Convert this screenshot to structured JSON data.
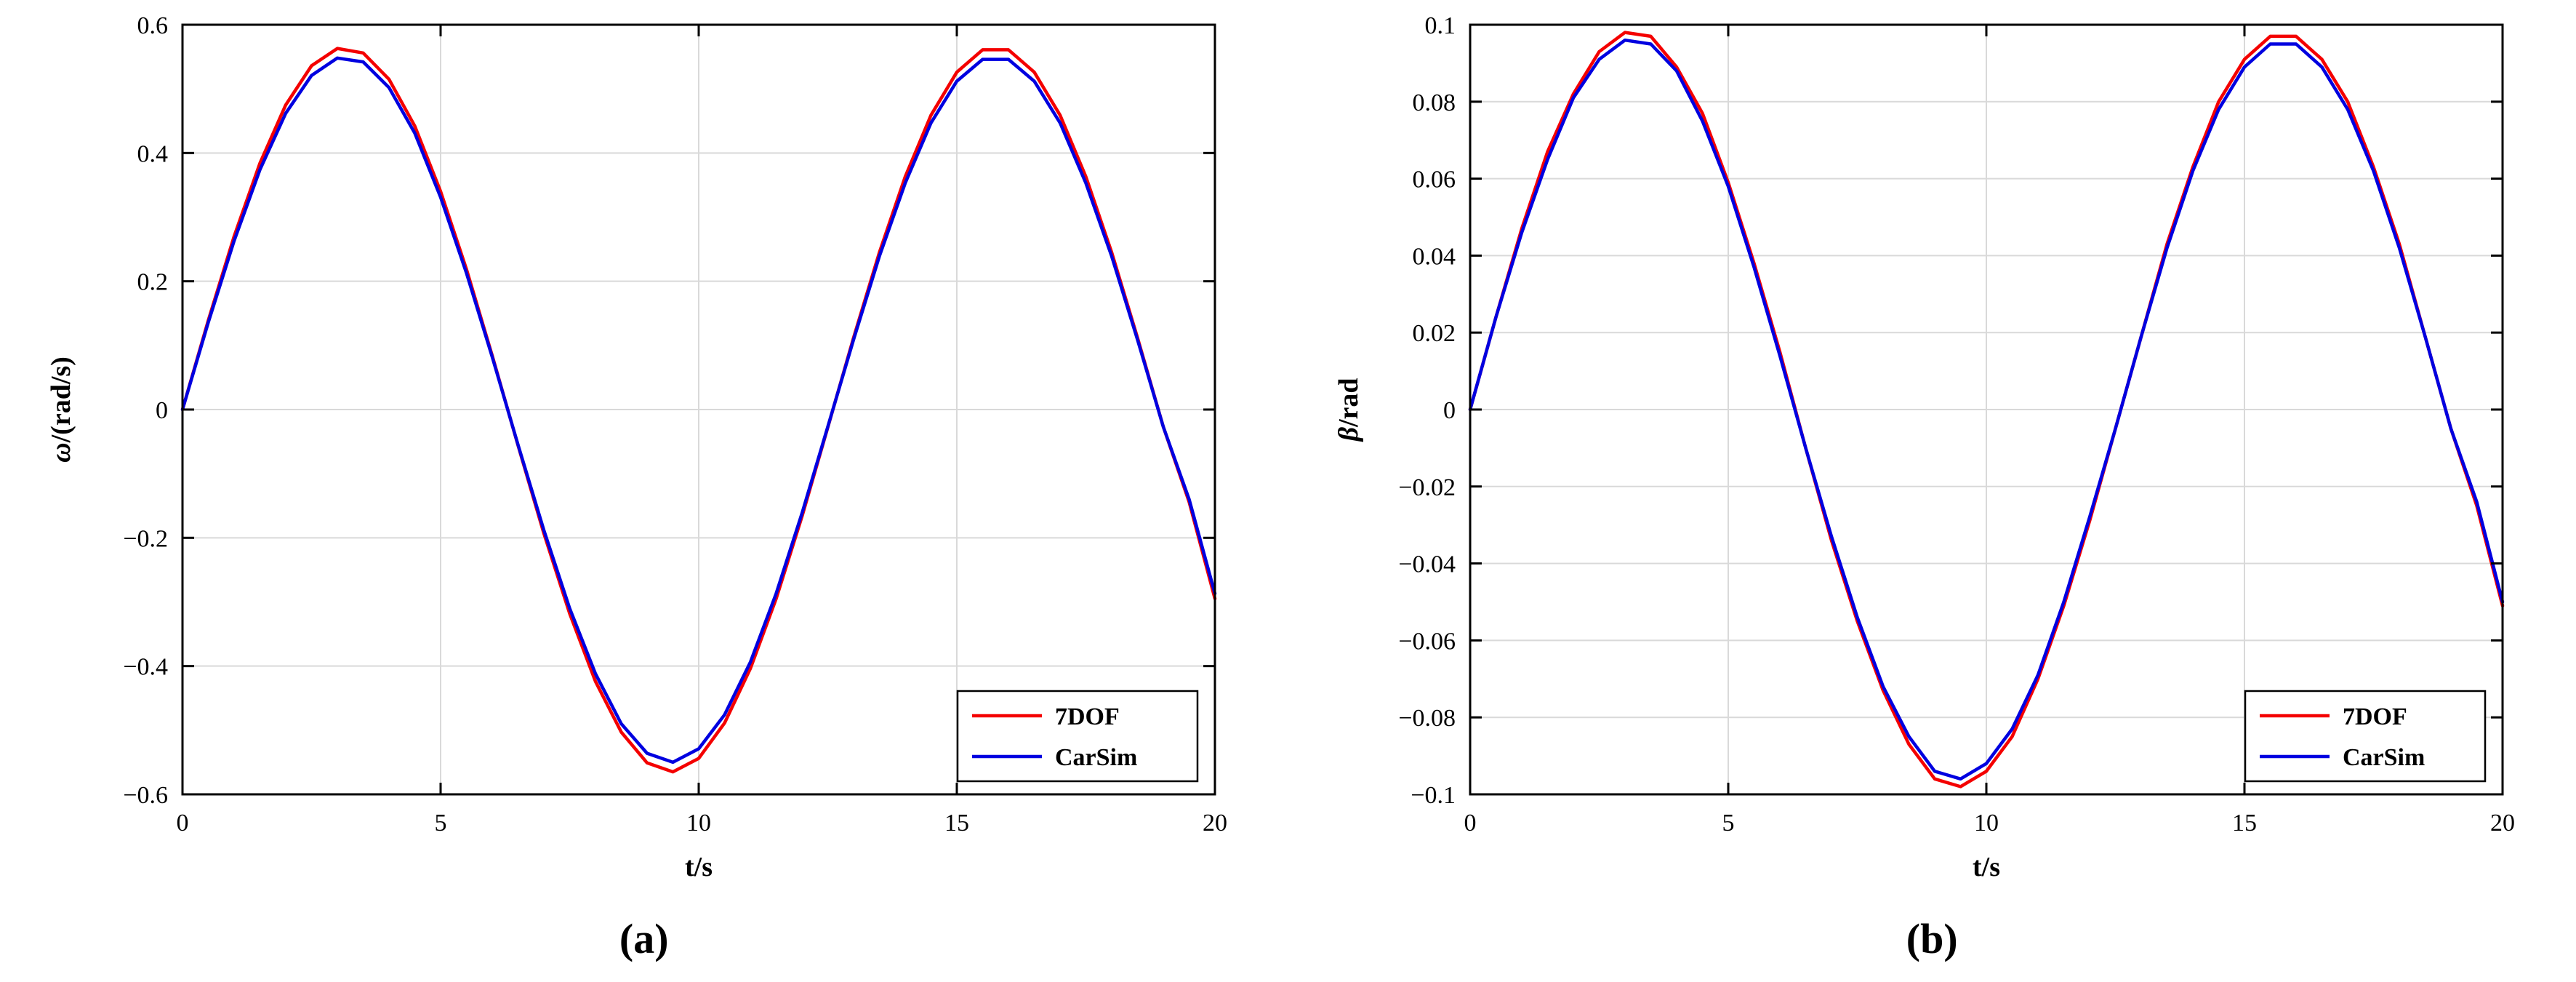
{
  "page": {
    "background": "#ffffff",
    "grid_color": "#d9d9d9",
    "axes_color": "#000000"
  },
  "chart_data": [
    {
      "name": "a",
      "caption": "(a)",
      "type": "line",
      "title": "",
      "xlabel": "t/s",
      "ylabel_symbol": "ω",
      "ylabel_rest": "/(rad/s)",
      "xlim": [
        0,
        20
      ],
      "ylim": [
        -0.6,
        0.6
      ],
      "grid": true,
      "legend_position": "bottom-right",
      "xticks": {
        "values": [
          0,
          5,
          10,
          15,
          20
        ],
        "labels": [
          "0",
          "5",
          "10",
          "15",
          "20"
        ]
      },
      "yticks": {
        "values": [
          -0.6,
          -0.4,
          -0.2,
          0,
          0.2,
          0.4,
          0.6
        ],
        "labels": [
          "−0.6",
          "−0.4",
          "−0.2",
          "0",
          "0.2",
          "0.4",
          "0.6"
        ]
      },
      "x": [
        0,
        0.5,
        1,
        1.5,
        2,
        2.5,
        3,
        3.5,
        4,
        4.5,
        5,
        5.5,
        6,
        6.5,
        7,
        7.5,
        8,
        8.5,
        9,
        9.5,
        10,
        10.5,
        11,
        11.5,
        12,
        12.5,
        13,
        13.5,
        14,
        14.5,
        15,
        15.5,
        16,
        16.5,
        17,
        17.5,
        18,
        18.5,
        19,
        19.5,
        20
      ],
      "series": [
        {
          "name": "7DOF",
          "color": "#f40000",
          "values": [
            0,
            0.139,
            0.27,
            0.384,
            0.475,
            0.536,
            0.563,
            0.556,
            0.515,
            0.442,
            0.34,
            0.219,
            0.084,
            -0.056,
            -0.193,
            -0.318,
            -0.424,
            -0.503,
            -0.551,
            -0.565,
            -0.544,
            -0.489,
            -0.404,
            -0.295,
            -0.167,
            -0.028,
            0.112,
            0.245,
            0.363,
            0.459,
            0.526,
            0.561,
            0.561,
            0.526,
            0.459,
            0.363,
            0.245,
            0.112,
            -0.027,
            -0.144,
            -0.295
          ]
        },
        {
          "name": "CarSim",
          "color": "#0000e0",
          "values": [
            0,
            0.136,
            0.263,
            0.374,
            0.462,
            0.521,
            0.548,
            0.542,
            0.502,
            0.431,
            0.331,
            0.213,
            0.082,
            -0.055,
            -0.188,
            -0.31,
            -0.412,
            -0.49,
            -0.536,
            -0.55,
            -0.529,
            -0.476,
            -0.394,
            -0.287,
            -0.162,
            -0.027,
            0.109,
            0.239,
            0.353,
            0.447,
            0.512,
            0.546,
            0.546,
            0.512,
            0.447,
            0.353,
            0.239,
            0.109,
            -0.027,
            -0.14,
            -0.287
          ]
        }
      ]
    },
    {
      "name": "b",
      "caption": "(b)",
      "type": "line",
      "title": "",
      "xlabel": "t/s",
      "ylabel_symbol": "β",
      "ylabel_rest": "/rad",
      "xlim": [
        0,
        20
      ],
      "ylim": [
        -0.1,
        0.1
      ],
      "grid": true,
      "legend_position": "bottom-right",
      "xticks": {
        "values": [
          0,
          5,
          10,
          15,
          20
        ],
        "labels": [
          "0",
          "5",
          "10",
          "15",
          "20"
        ]
      },
      "yticks": {
        "values": [
          -0.1,
          -0.08,
          -0.06,
          -0.04,
          -0.02,
          0,
          0.02,
          0.04,
          0.06,
          0.08,
          0.1
        ],
        "labels": [
          "−0.1",
          "−0.08",
          "−0.06",
          "−0.04",
          "−0.02",
          "0",
          "0.02",
          "0.04",
          "0.06",
          "0.08",
          "0.1"
        ]
      },
      "x": [
        0,
        0.5,
        1,
        1.5,
        2,
        2.5,
        3,
        3.5,
        4,
        4.5,
        5,
        5.5,
        6,
        6.5,
        7,
        7.5,
        8,
        8.5,
        9,
        9.5,
        10,
        10.5,
        11,
        11.5,
        12,
        12.5,
        13,
        13.5,
        14,
        14.5,
        15,
        15.5,
        16,
        16.5,
        17,
        17.5,
        18,
        18.5,
        19,
        19.5,
        20
      ],
      "series": [
        {
          "name": "7DOF",
          "color": "#f40000",
          "values": [
            0,
            0.024,
            0.047,
            0.067,
            0.082,
            0.093,
            0.098,
            0.097,
            0.089,
            0.077,
            0.059,
            0.038,
            0.015,
            -0.01,
            -0.034,
            -0.055,
            -0.073,
            -0.087,
            -0.096,
            -0.098,
            -0.094,
            -0.085,
            -0.07,
            -0.051,
            -0.029,
            -0.005,
            0.019,
            0.043,
            0.063,
            0.08,
            0.091,
            0.097,
            0.097,
            0.091,
            0.08,
            0.063,
            0.043,
            0.019,
            -0.005,
            -0.025,
            -0.051
          ]
        },
        {
          "name": "CarSim",
          "color": "#0000e0",
          "values": [
            0,
            0.024,
            0.046,
            0.065,
            0.081,
            0.091,
            0.096,
            0.095,
            0.088,
            0.075,
            0.058,
            0.037,
            0.014,
            -0.01,
            -0.033,
            -0.054,
            -0.072,
            -0.085,
            -0.094,
            -0.096,
            -0.092,
            -0.083,
            -0.069,
            -0.05,
            -0.028,
            -0.005,
            0.019,
            0.042,
            0.062,
            0.078,
            0.089,
            0.095,
            0.095,
            0.089,
            0.078,
            0.062,
            0.042,
            0.019,
            -0.005,
            -0.024,
            -0.05
          ]
        }
      ]
    }
  ]
}
